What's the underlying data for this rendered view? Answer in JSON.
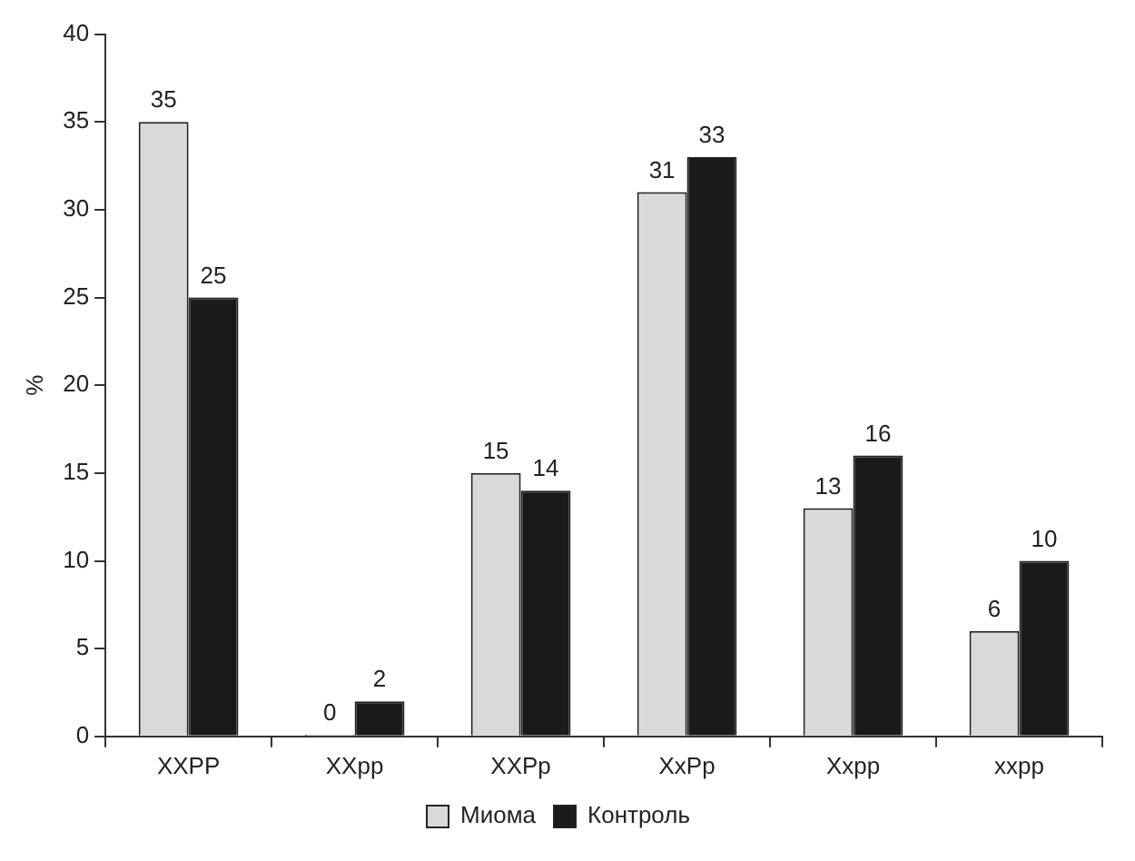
{
  "chart_data": {
    "type": "bar",
    "ylabel": "%",
    "categories": [
      "XXPP",
      "XXpp",
      "XXPp",
      "XxPp",
      "Xxpp",
      "xxpp"
    ],
    "series": [
      {
        "name": "Миома",
        "color": "#d9d9d9",
        "values": [
          35,
          0,
          15,
          31,
          13,
          6
        ]
      },
      {
        "name": "Контроль",
        "color": "#1a1a1a",
        "values": [
          25,
          2,
          14,
          33,
          16,
          10
        ]
      }
    ],
    "ylim": [
      0,
      40
    ],
    "yticks": [
      0,
      5,
      10,
      15,
      20,
      25,
      30,
      35,
      40
    ],
    "grid": false,
    "legend": "bottom",
    "data_labels": true
  }
}
